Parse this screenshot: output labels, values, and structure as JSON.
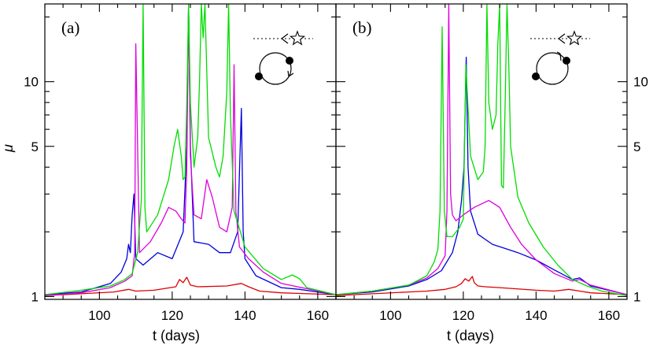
{
  "chart_data": [
    {
      "type": "line",
      "panel_label": "(a)",
      "xlabel": "t (days)",
      "ylabel": "μ",
      "xlim": [
        85,
        165
      ],
      "ylim": [
        0.97,
        23
      ],
      "yscale": "log",
      "x_ticks": [
        100,
        120,
        140,
        160
      ],
      "y_ticks": [
        1,
        5,
        10
      ],
      "y_tick_labels": [
        "1",
        "5",
        "10"
      ],
      "y_labels_side": "left",
      "grid": false,
      "inset": "dotted line of sight with arrow toward a star; two black dots on a circular orbit with a clockwise arrow",
      "series": [
        {
          "color": "#dd0000",
          "x": [
            85,
            95,
            104,
            108,
            110,
            115,
            121,
            122,
            123,
            124,
            125,
            127,
            135,
            139,
            141,
            144,
            150,
            165
          ],
          "y": [
            1.01,
            1.03,
            1.05,
            1.08,
            1.06,
            1.07,
            1.11,
            1.2,
            1.16,
            1.23,
            1.13,
            1.11,
            1.12,
            1.15,
            1.11,
            1.06,
            1.04,
            1.02
          ]
        },
        {
          "color": "#0000dd",
          "x": [
            85,
            95,
            103,
            106,
            107.5,
            108,
            108.5,
            109,
            109.5,
            110,
            112,
            116,
            120,
            123,
            124,
            124.5,
            125,
            126,
            130,
            133,
            136,
            138,
            139,
            139.5,
            140,
            143,
            150,
            155,
            165
          ],
          "y": [
            1.02,
            1.05,
            1.15,
            1.3,
            1.5,
            1.75,
            1.6,
            2.4,
            3.0,
            1.5,
            1.4,
            1.6,
            1.5,
            2.0,
            5.0,
            23,
            5.0,
            1.8,
            1.75,
            1.6,
            1.6,
            2.0,
            7.5,
            2.0,
            1.5,
            1.25,
            1.1,
            1.08,
            1.02
          ]
        },
        {
          "color": "#dd00dd",
          "x": [
            85,
            95,
            103,
            107,
            109,
            109.7,
            110,
            111,
            114,
            117,
            119,
            121,
            122.5,
            123.5,
            124,
            124.5,
            125,
            126,
            128,
            129.5,
            131,
            133,
            135,
            136.5,
            137,
            137.5,
            138.5,
            141,
            145,
            150,
            165
          ],
          "y": [
            1.01,
            1.04,
            1.1,
            1.18,
            1.25,
            1.6,
            15,
            1.6,
            1.8,
            2.2,
            2.6,
            2.5,
            2.3,
            2.2,
            4.0,
            23,
            4.5,
            2.4,
            2.3,
            3.5,
            2.9,
            2.1,
            2.0,
            2.6,
            12,
            2.5,
            1.7,
            1.5,
            1.3,
            1.15,
            1.02
          ]
        },
        {
          "color": "#00dd00",
          "x": [
            85,
            95,
            103,
            107,
            109,
            110.5,
            111.5,
            112,
            112.5,
            113,
            116,
            119,
            120.5,
            121.5,
            122.5,
            123,
            123.5,
            124,
            124.5,
            125,
            126,
            127,
            127.5,
            128,
            128.5,
            129,
            130,
            132,
            133,
            134,
            135,
            135.5,
            136,
            137,
            140,
            145,
            150,
            153,
            155,
            157,
            165
          ],
          "y": [
            1.02,
            1.07,
            1.12,
            1.2,
            1.28,
            1.6,
            2.8,
            23,
            2.6,
            2.0,
            2.4,
            3.5,
            5.0,
            6.0,
            4.5,
            3.5,
            3.6,
            8.0,
            23,
            8.0,
            4.0,
            5.5,
            10,
            23,
            16,
            23,
            5.5,
            4.0,
            3.6,
            4.5,
            9.0,
            23,
            7.0,
            2.5,
            1.7,
            1.35,
            1.2,
            1.26,
            1.21,
            1.1,
            1.02
          ]
        }
      ]
    },
    {
      "type": "line",
      "panel_label": "(b)",
      "xlabel": "t (days)",
      "ylabel": "",
      "xlim": [
        85,
        165
      ],
      "ylim": [
        0.97,
        23
      ],
      "yscale": "log",
      "x_ticks": [
        100,
        120,
        140,
        160
      ],
      "y_ticks": [
        1,
        5,
        10
      ],
      "y_tick_labels": [
        "1",
        "5",
        "10"
      ],
      "y_labels_side": "right",
      "grid": false,
      "inset": "dotted line of sight with arrow toward a star; two black dots on a circular orbit with a clockwise arrow",
      "series": [
        {
          "color": "#dd0000",
          "x": [
            85,
            95,
            105,
            110,
            115,
            118,
            119.5,
            120.5,
            121.5,
            122.5,
            123,
            124,
            126,
            130,
            140,
            145,
            149,
            152,
            155,
            165
          ],
          "y": [
            1.01,
            1.03,
            1.05,
            1.06,
            1.08,
            1.11,
            1.15,
            1.21,
            1.18,
            1.24,
            1.16,
            1.12,
            1.11,
            1.1,
            1.07,
            1.06,
            1.08,
            1.06,
            1.04,
            1.02
          ]
        },
        {
          "color": "#0000dd",
          "x": [
            85,
            95,
            105,
            110,
            114,
            117,
            118.5,
            119.5,
            120.2,
            120.8,
            121.3,
            122,
            124,
            128,
            135,
            140,
            145,
            150,
            152,
            155,
            165
          ],
          "y": [
            1.02,
            1.05,
            1.12,
            1.2,
            1.32,
            1.6,
            2.0,
            2.8,
            4.0,
            13,
            4.0,
            2.5,
            1.95,
            1.75,
            1.6,
            1.48,
            1.33,
            1.2,
            1.22,
            1.12,
            1.02
          ]
        },
        {
          "color": "#dd00dd",
          "x": [
            85,
            95,
            105,
            110,
            113,
            115,
            115.5,
            116,
            116.5,
            117,
            118,
            120,
            123,
            127,
            130,
            133,
            136,
            140,
            145,
            150,
            152,
            155,
            165
          ],
          "y": [
            1.02,
            1.06,
            1.13,
            1.22,
            1.35,
            1.55,
            2.5,
            23,
            3.0,
            2.4,
            2.25,
            2.4,
            2.6,
            2.8,
            2.6,
            2.1,
            1.75,
            1.48,
            1.28,
            1.18,
            1.2,
            1.13,
            1.02
          ]
        },
        {
          "color": "#00dd00",
          "x": [
            85,
            95,
            105,
            110,
            112,
            113,
            113.6,
            114.2,
            114.8,
            115.5,
            117,
            119,
            120,
            120.7,
            122,
            124,
            125.5,
            126,
            126.5,
            127,
            128,
            129,
            129.5,
            130,
            130.5,
            131,
            131.5,
            132,
            132.5,
            133,
            135,
            138,
            142,
            146,
            150,
            154,
            158,
            165
          ],
          "y": [
            1.02,
            1.06,
            1.13,
            1.25,
            1.45,
            1.65,
            2.5,
            18,
            2.5,
            1.9,
            1.9,
            2.1,
            2.3,
            12,
            4.5,
            3.5,
            3.8,
            5.0,
            23,
            8.0,
            6.0,
            7.0,
            15,
            23,
            3.3,
            3.2,
            8.0,
            23,
            12,
            5.0,
            2.9,
            2.2,
            1.7,
            1.4,
            1.2,
            1.12,
            1.06,
            1.01
          ]
        }
      ]
    }
  ]
}
